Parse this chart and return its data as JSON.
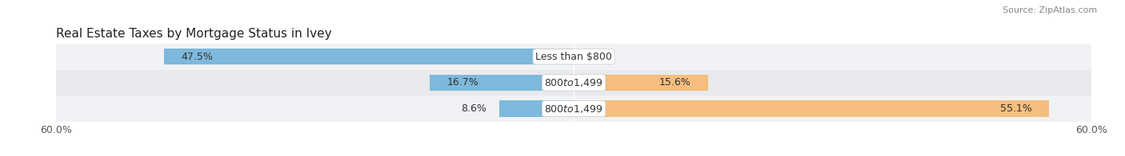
{
  "title": "Real Estate Taxes by Mortgage Status in Ivey",
  "source": "Source: ZipAtlas.com",
  "rows": [
    {
      "label": "Less than $800",
      "without": 47.5,
      "with": 0.0
    },
    {
      "label": "$800 to $1,499",
      "without": 16.7,
      "with": 15.6
    },
    {
      "label": "$800 to $1,499",
      "without": 8.6,
      "with": 55.1
    }
  ],
  "xlim": 60.0,
  "color_without": "#7EB8DC",
  "color_with": "#F5BE7E",
  "row_bg_colors": [
    "#F0F2F5",
    "#E8EAED",
    "#F0F2F5"
  ],
  "bar_height": 0.62,
  "value_fontsize": 9,
  "label_fontsize": 9,
  "tick_fontsize": 9,
  "title_fontsize": 11,
  "source_fontsize": 8,
  "legend_fontsize": 9
}
